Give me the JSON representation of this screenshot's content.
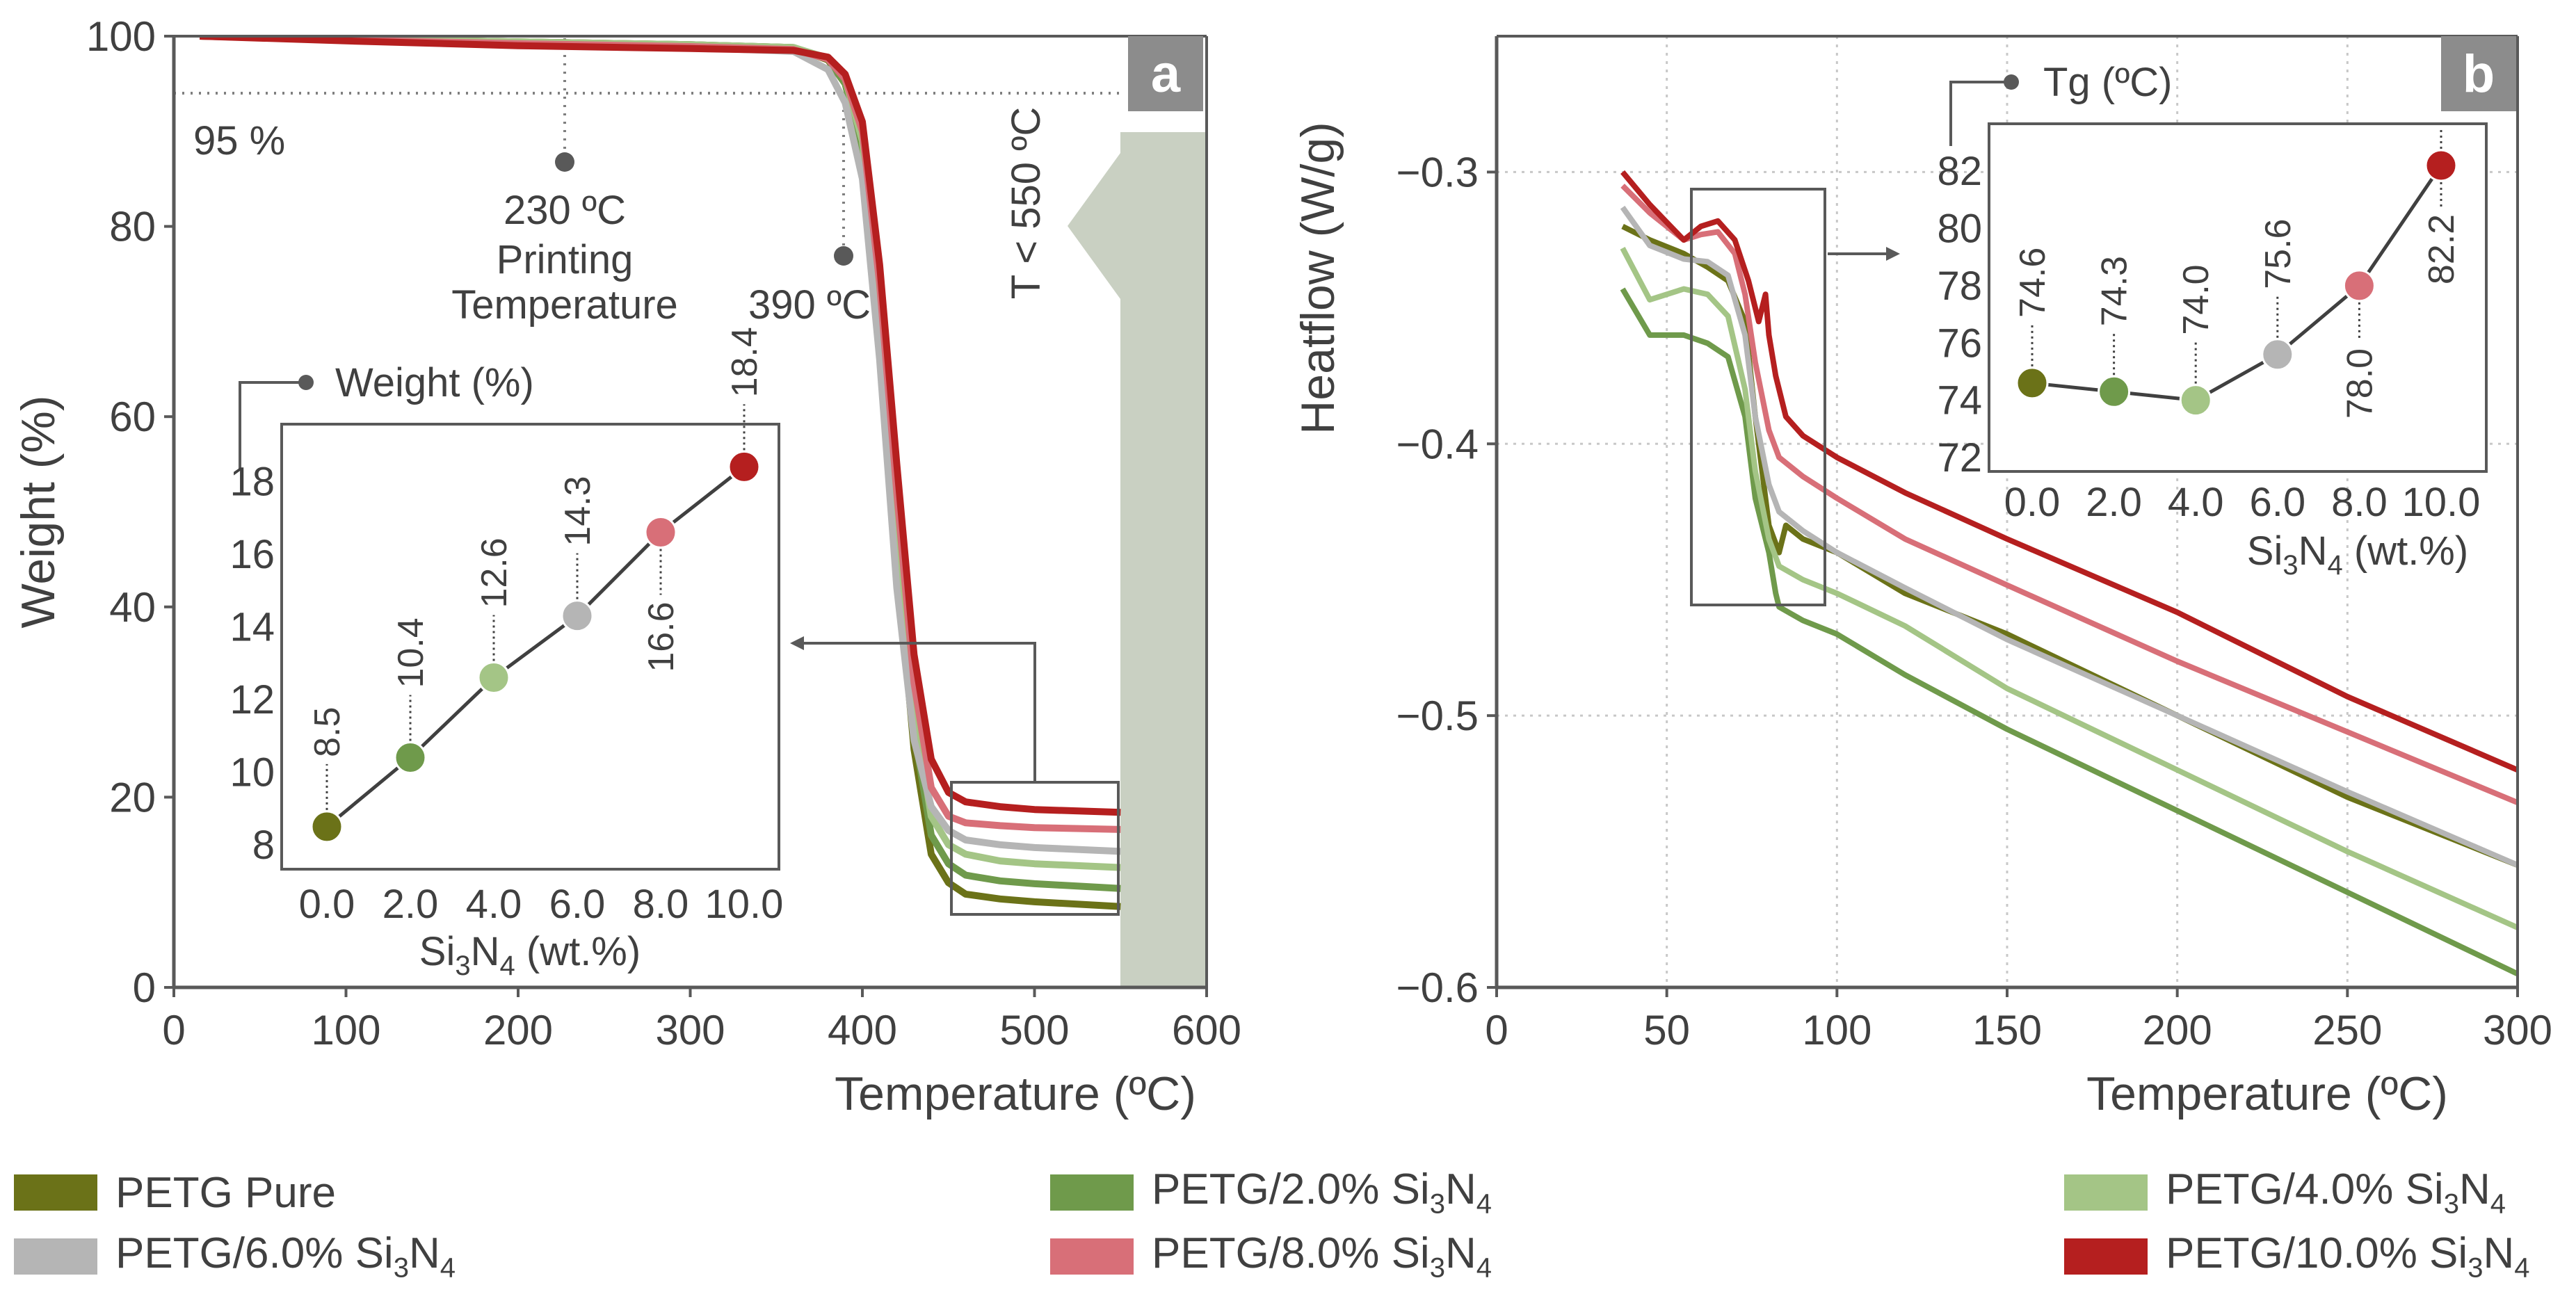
{
  "chart_data": [
    {
      "panel": "a",
      "type": "line",
      "xlabel": "Temperature (ºC)",
      "ylabel": "Weight (%)",
      "xlim": [
        0,
        600
      ],
      "ylim": [
        0,
        100
      ],
      "xticks": [
        "0",
        "100",
        "200",
        "300",
        "400",
        "500",
        "600"
      ],
      "yticks": [
        "0",
        "20",
        "40",
        "60",
        "80",
        "100"
      ],
      "annotations": {
        "ref95": "95 %",
        "print_temp_value": "230 ºC",
        "print_temp_line1": "Printing",
        "print_temp_line2": "Temperature",
        "onset": "390 ºC",
        "region": "T < 550 ºC"
      },
      "series": [
        {
          "name": "PETG Pure",
          "color": "#6b7218",
          "x": [
            15,
            100,
            200,
            300,
            360,
            380,
            390,
            400,
            410,
            420,
            430,
            440,
            450,
            460,
            480,
            500,
            550
          ],
          "y": [
            100,
            99.7,
            99.4,
            99.1,
            98.8,
            97.5,
            95,
            88,
            70,
            45,
            25,
            14,
            11,
            9.8,
            9.3,
            9.0,
            8.5
          ]
        },
        {
          "name": "PETG/2.0% Si3N4",
          "color": "#6f9a4b",
          "x": [
            15,
            100,
            200,
            300,
            360,
            380,
            390,
            400,
            410,
            420,
            430,
            440,
            450,
            460,
            480,
            500,
            550
          ],
          "y": [
            100,
            99.7,
            99.4,
            99.1,
            98.8,
            97.6,
            95,
            88,
            70,
            46,
            27,
            16,
            13,
            11.8,
            11.2,
            10.9,
            10.4
          ]
        },
        {
          "name": "PETG/4.0% Si3N4",
          "color": "#a4c586",
          "x": [
            15,
            100,
            200,
            300,
            360,
            380,
            390,
            400,
            410,
            420,
            430,
            440,
            450,
            460,
            480,
            500,
            550
          ],
          "y": [
            100,
            99.7,
            99.4,
            99.1,
            98.8,
            97.7,
            95.5,
            89,
            72,
            48,
            29,
            18,
            15,
            14,
            13.3,
            13.0,
            12.6
          ]
        },
        {
          "name": "PETG/6.0% Si3N4",
          "color": "#b5b5b5",
          "x": [
            15,
            100,
            200,
            300,
            360,
            380,
            390,
            400,
            410,
            420,
            430,
            440,
            450,
            460,
            480,
            500,
            550
          ],
          "y": [
            100,
            99.6,
            99.2,
            98.8,
            98.4,
            96.5,
            93,
            85,
            66,
            42,
            26,
            19,
            16.5,
            15.5,
            15,
            14.7,
            14.3
          ]
        },
        {
          "name": "PETG/8.0% Si3N4",
          "color": "#d86f78",
          "x": [
            15,
            100,
            200,
            300,
            360,
            380,
            390,
            400,
            410,
            420,
            430,
            440,
            450,
            460,
            480,
            500,
            550
          ],
          "y": [
            100,
            99.6,
            99.2,
            98.9,
            98.6,
            97.6,
            95.5,
            90,
            74,
            52,
            32,
            21,
            18,
            17.3,
            17,
            16.8,
            16.6
          ]
        },
        {
          "name": "PETG/10.0% Si3N4",
          "color": "#b51f1f",
          "x": [
            15,
            100,
            200,
            300,
            360,
            380,
            390,
            400,
            410,
            420,
            430,
            440,
            450,
            460,
            480,
            500,
            550
          ],
          "y": [
            100,
            99.5,
            99.0,
            98.7,
            98.5,
            97.8,
            96,
            91,
            76,
            55,
            35,
            24,
            20.5,
            19.5,
            19,
            18.7,
            18.4
          ]
        }
      ],
      "inset": {
        "title": "Weight (%)",
        "xlabel": "Si3N4 (wt.%)",
        "xlabel_main": "Si",
        "xlabel_sub1": "3",
        "xlabel_mid": "N",
        "xlabel_sub2": "4",
        "xlabel_tail": " (wt.%)",
        "x": [
          0.0,
          2.0,
          4.0,
          6.0,
          8.0,
          10.0
        ],
        "xticks": [
          "0.0",
          "2.0",
          "4.0",
          "6.0",
          "8.0",
          "10.0"
        ],
        "y": [
          8.5,
          10.4,
          12.6,
          14.3,
          16.6,
          18.4
        ],
        "labels": [
          "8.5",
          "10.4",
          "12.6",
          "14.3",
          "16.6",
          "18.4"
        ],
        "ylim": [
          8,
          19
        ],
        "yticks": [
          "8",
          "10",
          "12",
          "14",
          "16",
          "18"
        ]
      }
    },
    {
      "panel": "b",
      "type": "line",
      "xlabel": "Temperature (ºC)",
      "ylabel": "Heatflow (W/g)",
      "xlim": [
        0,
        300
      ],
      "ylim": [
        -0.6,
        -0.25
      ],
      "xticks": [
        "0",
        "50",
        "100",
        "150",
        "200",
        "250",
        "300"
      ],
      "yticks": [
        "−0.6",
        "−0.5",
        "−0.4",
        "−0.3"
      ],
      "series": [
        {
          "name": "PETG Pure",
          "color": "#6b7218",
          "x": [
            37,
            45,
            55,
            62,
            68,
            73,
            76,
            80,
            83,
            85,
            90,
            100,
            120,
            150,
            200,
            250,
            300
          ],
          "y": [
            -0.32,
            -0.325,
            -0.33,
            -0.335,
            -0.34,
            -0.355,
            -0.39,
            -0.43,
            -0.44,
            -0.43,
            -0.435,
            -0.44,
            -0.455,
            -0.47,
            -0.5,
            -0.53,
            -0.555
          ]
        },
        {
          "name": "PETG/2.0% Si3N4",
          "color": "#6f9a4b",
          "x": [
            37,
            45,
            55,
            62,
            68,
            73,
            76,
            80,
            82,
            83,
            90,
            100,
            120,
            150,
            200,
            250,
            300
          ],
          "y": [
            -0.343,
            -0.36,
            -0.36,
            -0.363,
            -0.368,
            -0.39,
            -0.42,
            -0.44,
            -0.455,
            -0.46,
            -0.465,
            -0.47,
            -0.485,
            -0.505,
            -0.535,
            -0.565,
            -0.595
          ]
        },
        {
          "name": "PETG/4.0% Si3N4",
          "color": "#a4c586",
          "x": [
            37,
            45,
            55,
            62,
            68,
            73,
            76,
            80,
            83,
            90,
            100,
            120,
            150,
            200,
            250,
            300
          ],
          "y": [
            -0.328,
            -0.347,
            -0.343,
            -0.345,
            -0.353,
            -0.38,
            -0.41,
            -0.435,
            -0.445,
            -0.45,
            -0.455,
            -0.467,
            -0.49,
            -0.52,
            -0.55,
            -0.578
          ]
        },
        {
          "name": "PETG/6.0% Si3N4",
          "color": "#b5b5b5",
          "x": [
            37,
            45,
            55,
            62,
            68,
            73,
            76,
            80,
            83,
            90,
            100,
            120,
            150,
            200,
            250,
            300
          ],
          "y": [
            -0.313,
            -0.327,
            -0.332,
            -0.333,
            -0.338,
            -0.36,
            -0.39,
            -0.415,
            -0.425,
            -0.432,
            -0.44,
            -0.453,
            -0.472,
            -0.5,
            -0.528,
            -0.555
          ]
        },
        {
          "name": "PETG/8.0% Si3N4",
          "color": "#d86f78",
          "x": [
            37,
            45,
            55,
            60,
            65,
            70,
            73,
            76,
            80,
            83,
            90,
            100,
            120,
            150,
            200,
            250,
            300
          ],
          "y": [
            -0.305,
            -0.315,
            -0.325,
            -0.323,
            -0.322,
            -0.33,
            -0.345,
            -0.37,
            -0.395,
            -0.405,
            -0.412,
            -0.42,
            -0.435,
            -0.452,
            -0.48,
            -0.506,
            -0.532
          ]
        },
        {
          "name": "PETG/10.0% Si3N4",
          "color": "#b51f1f",
          "x": [
            37,
            45,
            55,
            60,
            65,
            70,
            74,
            77,
            79,
            80,
            82,
            85,
            90,
            100,
            120,
            150,
            200,
            250,
            300
          ],
          "y": [
            -0.3,
            -0.312,
            -0.325,
            -0.32,
            -0.318,
            -0.325,
            -0.34,
            -0.355,
            -0.345,
            -0.36,
            -0.375,
            -0.39,
            -0.397,
            -0.405,
            -0.418,
            -0.435,
            -0.462,
            -0.493,
            -0.52
          ]
        }
      ],
      "inset": {
        "title": "Tg (ºC)",
        "xlabel_main": "Si",
        "xlabel_sub1": "3",
        "xlabel_mid": "N",
        "xlabel_sub2": "4",
        "xlabel_tail": " (wt.%)",
        "x": [
          0.0,
          2.0,
          4.0,
          6.0,
          8.0,
          10.0
        ],
        "xticks": [
          "0.0",
          "2.0",
          "4.0",
          "6.0",
          "8.0",
          "10.0"
        ],
        "y": [
          74.6,
          74.3,
          74.0,
          75.6,
          78.0,
          82.2
        ],
        "labels": [
          "74.6",
          "74.3",
          "74.0",
          "75.6",
          "78.0",
          "82.2"
        ],
        "ylim": [
          72,
          83
        ],
        "yticks": [
          "72",
          "74",
          "76",
          "78",
          "80",
          "82"
        ]
      }
    }
  ],
  "panel_labels": {
    "a": "a",
    "b": "b"
  },
  "legend": [
    {
      "main": "PETG Pure",
      "sub1": "",
      "mid": "",
      "sub2": "",
      "color": "#6b7218"
    },
    {
      "main": "PETG/2.0% Si",
      "sub1": "3",
      "mid": "N",
      "sub2": "4",
      "color": "#6f9a4b"
    },
    {
      "main": "PETG/4.0% Si",
      "sub1": "3",
      "mid": "N",
      "sub2": "4",
      "color": "#a4c586"
    },
    {
      "main": "PETG/6.0% Si",
      "sub1": "3",
      "mid": "N",
      "sub2": "4",
      "color": "#b5b5b5"
    },
    {
      "main": "PETG/8.0% Si",
      "sub1": "3",
      "mid": "N",
      "sub2": "4",
      "color": "#d86f78"
    },
    {
      "main": "PETG/10.0% Si",
      "sub1": "3",
      "mid": "N",
      "sub2": "4",
      "color": "#b51f1f"
    }
  ],
  "colors": {
    "axis": "#595959",
    "text": "#404040",
    "region": "#c9d0c2",
    "badge": "#8c8c8c"
  }
}
